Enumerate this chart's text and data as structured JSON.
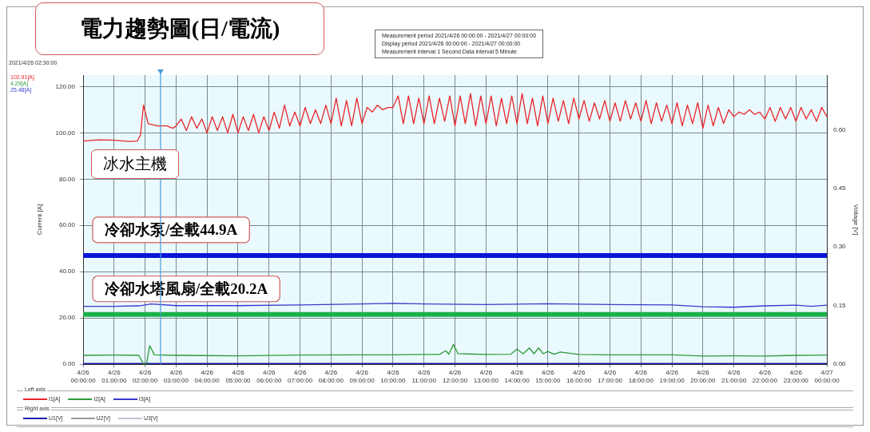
{
  "chart_data": {
    "type": "line",
    "title": "電力趨勢圖(日/電流)",
    "ylabel": "Current [A]",
    "y2label": "Voltage [V]",
    "xlim": [
      "2021-04-26T00:00",
      "2021-04-27T00:00"
    ],
    "xticks": [
      {
        "value": "2021-04-26T00:00",
        "label": "4/26 00:00:00"
      },
      {
        "value": "2021-04-26T01:00",
        "label": "4/26 01:00:00"
      },
      {
        "value": "2021-04-26T02:00",
        "label": "4/26 02:00:00"
      },
      {
        "value": "2021-04-26T03:00",
        "label": "4/26 03:00:00"
      },
      {
        "value": "2021-04-26T04:00",
        "label": "4/26 04:00:00"
      },
      {
        "value": "2021-04-26T05:00",
        "label": "4/26 05:00:00"
      },
      {
        "value": "2021-04-26T06:00",
        "label": "4/26 06:00:00"
      },
      {
        "value": "2021-04-26T07:00",
        "label": "4/26 07:00:00"
      },
      {
        "value": "2021-04-26T08:00",
        "label": "4/26 08:00:00"
      },
      {
        "value": "2021-04-26T09:00",
        "label": "4/26 09:00:00"
      },
      {
        "value": "2021-04-26T10:00",
        "label": "4/26 10:00:00"
      },
      {
        "value": "2021-04-26T11:00",
        "label": "4/26 11:00:00"
      },
      {
        "value": "2021-04-26T12:00",
        "label": "4/26 12:00:00"
      },
      {
        "value": "2021-04-26T13:00",
        "label": "4/26 13:00:00"
      },
      {
        "value": "2021-04-26T14:00",
        "label": "4/26 14:00:00"
      },
      {
        "value": "2021-04-26T15:00",
        "label": "4/26 15:00:00"
      },
      {
        "value": "2021-04-26T16:00",
        "label": "4/26 16:00:00"
      },
      {
        "value": "2021-04-26T17:00",
        "label": "4/26 17:00:00"
      },
      {
        "value": "2021-04-26T18:00",
        "label": "4/26 18:00:00"
      },
      {
        "value": "2021-04-26T19:00",
        "label": "4/26 19:00:00"
      },
      {
        "value": "2021-04-26T20:00",
        "label": "4/26 20:00:00"
      },
      {
        "value": "2021-04-26T21:00",
        "label": "4/26 21:00:00"
      },
      {
        "value": "2021-04-26T22:00",
        "label": "4/26 22:00:00"
      },
      {
        "value": "2021-04-26T23:00",
        "label": "4/26 23:00:00"
      },
      {
        "value": "2021-04-27T00:00",
        "label": "4/27 00:00:00"
      }
    ],
    "ylim": [
      0,
      125
    ],
    "yticks": [
      {
        "value": 0,
        "label": "0.00"
      },
      {
        "value": 20,
        "label": "20.00"
      },
      {
        "value": 40,
        "label": "40.00"
      },
      {
        "value": 60,
        "label": "60.00"
      },
      {
        "value": 80,
        "label": "80.00"
      },
      {
        "value": 100,
        "label": "100.00"
      },
      {
        "value": 120,
        "label": "120.00"
      }
    ],
    "y2lim": [
      0,
      0.74
    ],
    "y2ticks": [
      {
        "value": 0,
        "label": "0.00"
      },
      {
        "value": 0.15,
        "label": "0.15"
      },
      {
        "value": 0.3,
        "label": "0.30"
      },
      {
        "value": 0.45,
        "label": "0.45"
      },
      {
        "value": 0.6,
        "label": "0.60"
      }
    ],
    "grid": true,
    "legend": "bottom",
    "marker": "none",
    "line_style": "solid",
    "series": [
      {
        "name": "I1[A]",
        "color": "#e8262a",
        "x": [
          "2021-04-26T00:00",
          "2021-04-26T00:30",
          "2021-04-26T01:00",
          "2021-04-26T01:30",
          "2021-04-26T01:45",
          "2021-04-26T01:51",
          "2021-04-26T01:57",
          "2021-04-26T02:06",
          "2021-04-26T02:24",
          "2021-04-26T02:42",
          "2021-04-26T02:54",
          "2021-04-26T03:00",
          "2021-04-26T03:10",
          "2021-04-26T03:20",
          "2021-04-26T03:30",
          "2021-04-26T03:40",
          "2021-04-26T03:50",
          "2021-04-26T04:00",
          "2021-04-26T04:10",
          "2021-04-26T04:20",
          "2021-04-26T04:30",
          "2021-04-26T04:40",
          "2021-04-26T04:50",
          "2021-04-26T05:00",
          "2021-04-26T05:10",
          "2021-04-26T05:20",
          "2021-04-26T05:30",
          "2021-04-26T05:40",
          "2021-04-26T05:50",
          "2021-04-26T06:00",
          "2021-04-26T06:10",
          "2021-04-26T06:20",
          "2021-04-26T06:30",
          "2021-04-26T06:40",
          "2021-04-26T06:50",
          "2021-04-26T07:00",
          "2021-04-26T07:10",
          "2021-04-26T07:20",
          "2021-04-26T07:30",
          "2021-04-26T07:40",
          "2021-04-26T07:50",
          "2021-04-26T08:00",
          "2021-04-26T08:10",
          "2021-04-26T08:20",
          "2021-04-26T08:30",
          "2021-04-26T08:40",
          "2021-04-26T08:50",
          "2021-04-26T09:00",
          "2021-04-26T09:10",
          "2021-04-26T09:20",
          "2021-04-26T09:30",
          "2021-04-26T09:40",
          "2021-04-26T09:50",
          "2021-04-26T10:00",
          "2021-04-26T10:10",
          "2021-04-26T10:20",
          "2021-04-26T10:30",
          "2021-04-26T10:40",
          "2021-04-26T10:50",
          "2021-04-26T11:00",
          "2021-04-26T11:10",
          "2021-04-26T11:20",
          "2021-04-26T11:30",
          "2021-04-26T11:40",
          "2021-04-26T11:50",
          "2021-04-26T12:00",
          "2021-04-26T12:10",
          "2021-04-26T12:20",
          "2021-04-26T12:30",
          "2021-04-26T12:40",
          "2021-04-26T12:50",
          "2021-04-26T13:00",
          "2021-04-26T13:10",
          "2021-04-26T13:20",
          "2021-04-26T13:30",
          "2021-04-26T13:40",
          "2021-04-26T13:50",
          "2021-04-26T14:00",
          "2021-04-26T14:10",
          "2021-04-26T14:20",
          "2021-04-26T14:30",
          "2021-04-26T14:40",
          "2021-04-26T14:50",
          "2021-04-26T15:00",
          "2021-04-26T15:10",
          "2021-04-26T15:20",
          "2021-04-26T15:30",
          "2021-04-26T15:40",
          "2021-04-26T15:50",
          "2021-04-26T16:00",
          "2021-04-26T16:10",
          "2021-04-26T16:20",
          "2021-04-26T16:30",
          "2021-04-26T16:40",
          "2021-04-26T16:50",
          "2021-04-26T17:00",
          "2021-04-26T17:10",
          "2021-04-26T17:20",
          "2021-04-26T17:30",
          "2021-04-26T17:40",
          "2021-04-26T17:50",
          "2021-04-26T18:00",
          "2021-04-26T18:10",
          "2021-04-26T18:20",
          "2021-04-26T18:30",
          "2021-04-26T18:40",
          "2021-04-26T18:50",
          "2021-04-26T19:00",
          "2021-04-26T19:10",
          "2021-04-26T19:20",
          "2021-04-26T19:30",
          "2021-04-26T19:40",
          "2021-04-26T19:50",
          "2021-04-26T20:00",
          "2021-04-26T20:10",
          "2021-04-26T20:20",
          "2021-04-26T20:30",
          "2021-04-26T20:40",
          "2021-04-26T20:50",
          "2021-04-26T21:00",
          "2021-04-26T21:10",
          "2021-04-26T21:20",
          "2021-04-26T21:30",
          "2021-04-26T21:40",
          "2021-04-26T21:50",
          "2021-04-26T22:00",
          "2021-04-26T22:10",
          "2021-04-26T22:20",
          "2021-04-26T22:30",
          "2021-04-26T22:40",
          "2021-04-26T22:50",
          "2021-04-26T23:00",
          "2021-04-26T23:10",
          "2021-04-26T23:20",
          "2021-04-26T23:30",
          "2021-04-26T23:40",
          "2021-04-26T23:50",
          "2021-04-27T00:00"
        ],
        "values": [
          96.5,
          97,
          96.8,
          96.3,
          96.5,
          99,
          112,
          104,
          103,
          103,
          102,
          103,
          106,
          101,
          107,
          102,
          106,
          100,
          107,
          101,
          107,
          100,
          108,
          100,
          107,
          101,
          108,
          100,
          107,
          101,
          109,
          102,
          112,
          103,
          109,
          103,
          111,
          104,
          110,
          104,
          112,
          104,
          115,
          103,
          114,
          103,
          115,
          104,
          111,
          109,
          112,
          110,
          111,
          111,
          116,
          104,
          116,
          104,
          115,
          104,
          116,
          104,
          115,
          105,
          116,
          103,
          116,
          104,
          117,
          103,
          116,
          104,
          116,
          103,
          115,
          104,
          116,
          104,
          117,
          104,
          115,
          103,
          116,
          104,
          115,
          105,
          114,
          104,
          115,
          106,
          114,
          105,
          113,
          106,
          114,
          105,
          113,
          105,
          114,
          106,
          113,
          105,
          114,
          104,
          113,
          105,
          112,
          104,
          113,
          103,
          112,
          104,
          113,
          102,
          112,
          103,
          111,
          104,
          110,
          107,
          109,
          108,
          110,
          108,
          109,
          106,
          111,
          105,
          111,
          106,
          111,
          105,
          111,
          106,
          110,
          105,
          111,
          107
        ]
      },
      {
        "name": "I2[A]",
        "color": "#2e9a3a",
        "x": [
          "2021-04-26T00:00",
          "2021-04-26T01:00",
          "2021-04-26T01:48",
          "2021-04-26T01:57",
          "2021-04-26T02:03",
          "2021-04-26T02:09",
          "2021-04-26T02:18",
          "2021-04-26T03:00",
          "2021-04-26T05:00",
          "2021-04-26T07:00",
          "2021-04-26T09:00",
          "2021-04-26T10:00",
          "2021-04-26T11:00",
          "2021-04-26T11:30",
          "2021-04-26T11:42",
          "2021-04-26T11:48",
          "2021-04-26T11:57",
          "2021-04-26T12:06",
          "2021-04-26T12:24",
          "2021-04-26T13:00",
          "2021-04-26T13:48",
          "2021-04-26T14:00",
          "2021-04-26T14:12",
          "2021-04-26T14:24",
          "2021-04-26T14:33",
          "2021-04-26T14:42",
          "2021-04-26T14:51",
          "2021-04-26T15:00",
          "2021-04-26T15:12",
          "2021-04-26T15:24",
          "2021-04-26T16:00",
          "2021-04-26T17:00",
          "2021-04-26T19:00",
          "2021-04-26T20:00",
          "2021-04-26T21:00",
          "2021-04-26T22:00",
          "2021-04-26T23:00",
          "2021-04-27T00:00"
        ],
        "values": [
          3.8,
          3.9,
          3.8,
          0,
          0.5,
          8,
          4,
          3.8,
          3.6,
          3.9,
          4,
          4,
          4.2,
          4.2,
          5.8,
          4.3,
          8.5,
          4.5,
          4.4,
          4.2,
          4.3,
          6.5,
          4.5,
          7,
          4.5,
          7,
          4.5,
          5.5,
          4.3,
          5.2,
          4.2,
          4,
          4,
          3.5,
          3.6,
          3.5,
          3.8,
          3.9
        ]
      },
      {
        "name": "I3[A]",
        "color": "#3a3ad0",
        "x": [
          "2021-04-26T00:00",
          "2021-04-26T01:00",
          "2021-04-26T01:48",
          "2021-04-26T02:12",
          "2021-04-26T03:00",
          "2021-04-26T05:00",
          "2021-04-26T07:00",
          "2021-04-26T09:00",
          "2021-04-26T10:00",
          "2021-04-26T11:00",
          "2021-04-26T13:00",
          "2021-04-26T15:00",
          "2021-04-26T17:00",
          "2021-04-26T19:00",
          "2021-04-26T20:00",
          "2021-04-26T21:00",
          "2021-04-26T22:00",
          "2021-04-26T23:00",
          "2021-04-26T23:30",
          "2021-04-27T00:00"
        ],
        "values": [
          25,
          25,
          25.2,
          26,
          25.3,
          25.3,
          25.6,
          26,
          26.3,
          26,
          25.8,
          26.1,
          25.8,
          25.6,
          24.8,
          24.6,
          25.2,
          25.5,
          25,
          25.5
        ]
      },
      {
        "name": "U1[V]",
        "color": "#1a1aa8",
        "axis": "y2",
        "x": [
          "2021-04-26T00:00",
          "2021-04-27T00:00"
        ],
        "values": [
          0,
          0
        ]
      },
      {
        "name": "U2[V]",
        "color": "#9a9a9a",
        "axis": "y2"
      },
      {
        "name": "U3[V]",
        "color": "#c4c4d4",
        "axis": "y2"
      }
    ],
    "ref_lines": [
      {
        "axis": "y",
        "value": 47,
        "label": "冷卻水泵/全載44.9A",
        "color": "#0a14d8"
      },
      {
        "axis": "y",
        "value": 21.5,
        "label": "冷卻水塔風扇/全載20.2A",
        "color": "#1cb04a"
      },
      {
        "axis": "x",
        "value": "2021-04-26T02:30",
        "color": "#4a9ad8"
      }
    ],
    "annotations": [
      "2021/4/26 02:30:00",
      "102.91[A]",
      "4.29[A]",
      "25.48[A]",
      "Measurement period  2021/4/26 00:00:00 - 2021/4/27 00:00:00",
      "Display period  2021/4/26 00:00:00 - 2021/4/27 00:00:00",
      "Measurement interval  1 Second  Data interval  5 Minute",
      "冰水主機",
      "Left axis",
      "Right axis"
    ]
  }
}
